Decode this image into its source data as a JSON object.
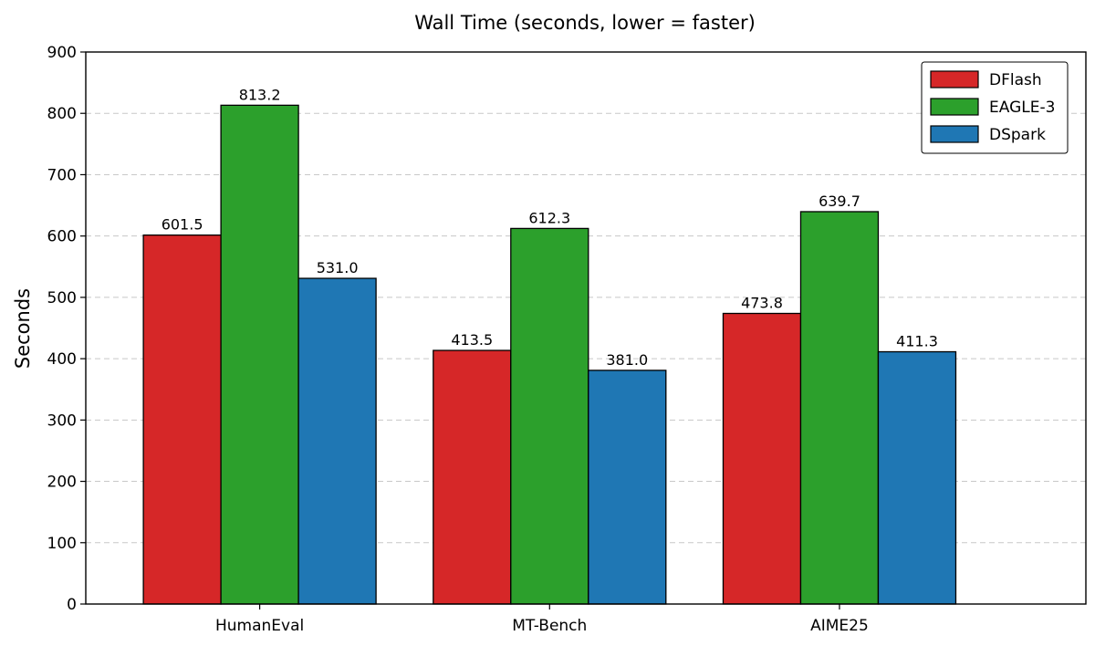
{
  "chart_data": {
    "type": "bar",
    "title": "Wall Time (seconds, lower = faster)",
    "xlabel": "",
    "ylabel": "Seconds",
    "categories": [
      "HumanEval",
      "MT-Bench",
      "AIME25"
    ],
    "series": [
      {
        "name": "DFlash",
        "color": "#d62728",
        "values": [
          601.5,
          413.5,
          473.8
        ],
        "labels": [
          "601.5",
          "413.5",
          "473.8"
        ]
      },
      {
        "name": "EAGLE-3",
        "color": "#2ca02c",
        "values": [
          813.2,
          612.3,
          639.7
        ],
        "labels": [
          "813.2",
          "612.3",
          "639.7"
        ]
      },
      {
        "name": "DSpark",
        "color": "#1f77b4",
        "values": [
          531.0,
          381.0,
          411.3
        ],
        "labels": [
          "531.0",
          "381.0",
          "411.3"
        ]
      }
    ],
    "ylim": [
      0,
      900
    ],
    "yticks": [
      0,
      100,
      200,
      300,
      400,
      500,
      600,
      700,
      800,
      900
    ],
    "ytick_labels": [
      "0",
      "100",
      "200",
      "300",
      "400",
      "500",
      "600",
      "700",
      "800",
      "900"
    ],
    "grid": "y-dashed",
    "legend_position": "top-right"
  }
}
